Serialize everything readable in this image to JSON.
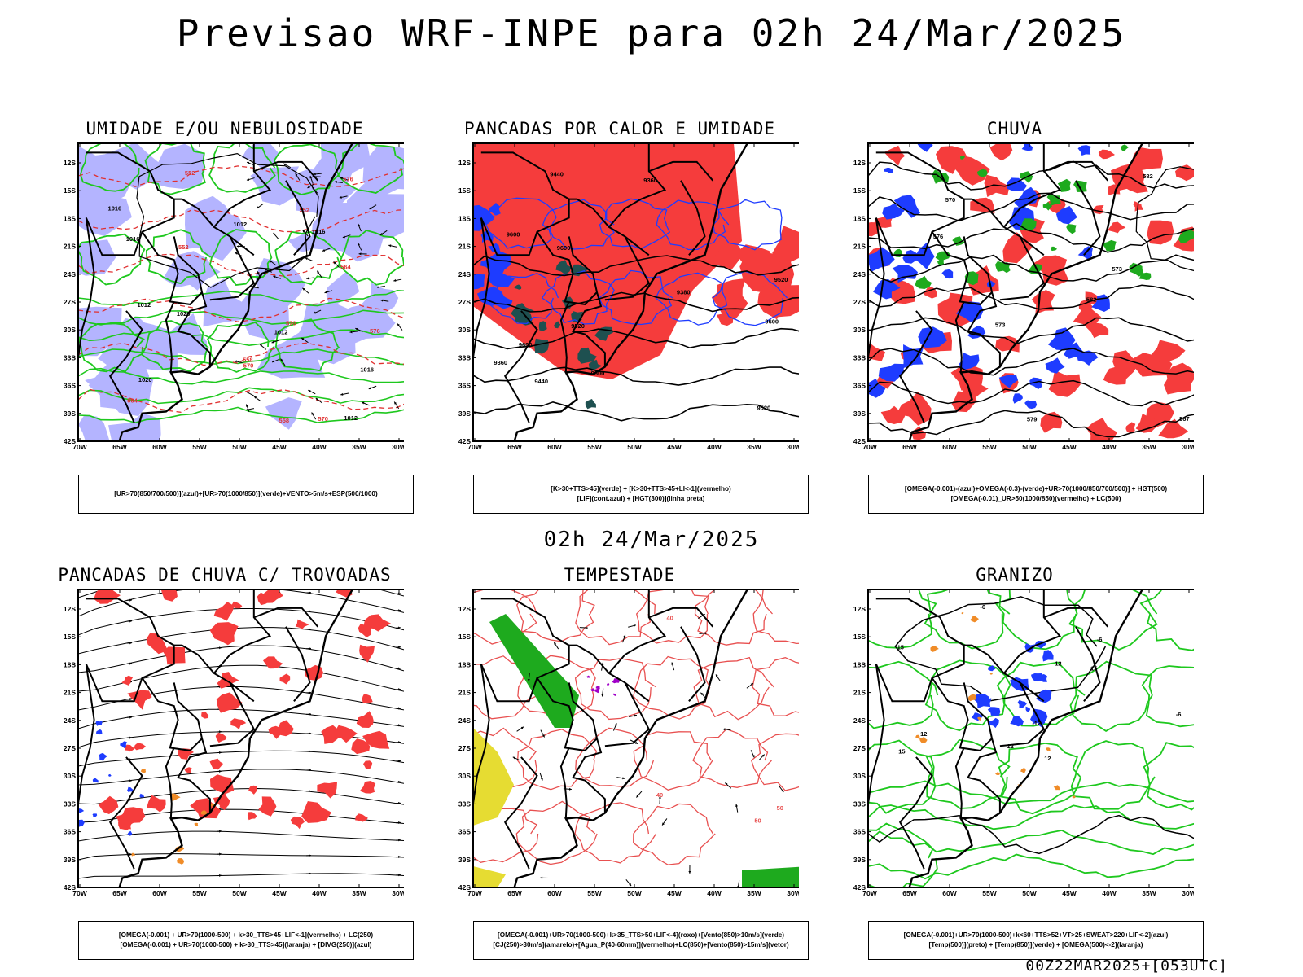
{
  "main_title": "Previsao WRF-INPE  para 02h 24/Mar/2025",
  "mid_title": "02h 24/Mar/2025",
  "footer": "00Z22MAR2025+[053UTC]",
  "axes": {
    "lat_ticks": [
      "12S",
      "15S",
      "18S",
      "21S",
      "24S",
      "27S",
      "30S",
      "33S",
      "36S",
      "39S",
      "42S"
    ],
    "lon_ticks": [
      "70W",
      "65W",
      "60W",
      "55W",
      "50W",
      "45W",
      "40W",
      "35W",
      "30W"
    ]
  },
  "colors": {
    "blue_fill": "#b4b4ff",
    "green_line": "#1ec81e",
    "red_fill": "#f53c3c",
    "blue_field": "#1e3cff",
    "dark_teal": "#1e5050",
    "yellow_fill": "#e6dc32",
    "purple": "#a000c8",
    "orange": "#f08c28",
    "green_fill": "#1eaa1e"
  },
  "panels": [
    {
      "id": "umidade",
      "title": "UMIDADE E/OU NEBULOSIDADE",
      "legend": [
        "[UR>70(850/700/500)](azul)+[UR>70(1000/850)](verde)+VENTO>5m/s+ESP(500/1000)"
      ],
      "labels": [
        "1012",
        "1012",
        "1012",
        "1016",
        "1016",
        "1016",
        "1020",
        "1020",
        "1016",
        "1012",
        "576",
        "570",
        "570",
        "564",
        "558",
        "552",
        "552",
        "552",
        "558",
        "564",
        "570",
        "576"
      ]
    },
    {
      "id": "pancadas-calor",
      "title": "PANCADAS POR CALOR E UMIDADE",
      "legend": [
        "[K>30+TTS>45](verde) + [K>30+TTS>45+LI<-1](vermelho)",
        "[LIF](cont.azul) + [HGT(300)](linha preta)"
      ],
      "labels": [
        "9600",
        "9600",
        "9600",
        "9600",
        "9600",
        "9520",
        "9520",
        "9520",
        "9440",
        "9440",
        "9360",
        "9360",
        "9380"
      ]
    },
    {
      "id": "chuva",
      "title": "CHUVA",
      "legend": [
        "[OMEGA(-0.001)-(azul)+OMEGA(-0.3)-(verde)+UR>70(1000/850/700/500)] + HGT(500)",
        "[OMEGA(-0.01)_UR>50(1000/850)(vermelho) + LC(500)"
      ],
      "labels": [
        "582",
        "582",
        "579",
        "576",
        "573",
        "573",
        "570",
        "567"
      ]
    },
    {
      "id": "pancadas-trovoadas",
      "title": "PANCADAS DE CHUVA C/ TROVOADAS",
      "legend": [
        "[OMEGA(-0.001) + UR>70(1000-500) + k>30_TTS>45+LIF<-1](vermelho) + LC(250)",
        "[OMEGA(-0.001) + UR>70(1000-500) + k>30_TTS>45](laranja) + [DIVG(250)](azul)"
      ],
      "labels": []
    },
    {
      "id": "tempestade",
      "title": "TEMPESTADE",
      "legend": [
        "[OMEGA(-0.001)+UR>70(1000-500)+k>35_TTS>50+LIF<-4](roxo)+[Vento(850)>10m/s](verde)",
        "[CJ(250)>30m/s](amarelo)+[Agua_P(40-60mm)](vermelho)+LC(850)+[Vento(850)>15m/s](vetor)"
      ],
      "labels": [
        "50",
        "50",
        "40",
        "40"
      ]
    },
    {
      "id": "granizo",
      "title": "GRANIZO",
      "legend": [
        "[OMEGA(-0.001)+UR>70(1000-500)+k<60+TTS>52+VT>25+SWEAT>220+LIF<-2](azul)",
        "[Temp(500)](preto) + [Temp(850)](verde) + [OMEGA(500)<-2](laranja)"
      ],
      "labels": [
        "-6",
        "-6",
        "-6",
        "12",
        "12",
        "12",
        "15",
        "15",
        "15",
        "-12",
        "-12"
      ]
    }
  ]
}
